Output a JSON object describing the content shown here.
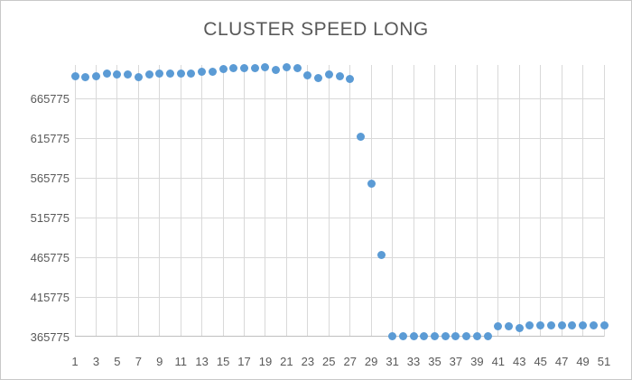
{
  "chart_data": {
    "type": "scatter",
    "title": "CLUSTER SPEED LONG",
    "xlabel": "",
    "ylabel": "",
    "legend": "none",
    "grid": true,
    "xlim": [
      1,
      51
    ],
    "ylim": [
      365775,
      708500
    ],
    "x_ticks": [
      1,
      3,
      5,
      7,
      9,
      11,
      13,
      15,
      17,
      19,
      21,
      23,
      25,
      27,
      29,
      31,
      33,
      35,
      37,
      39,
      41,
      43,
      45,
      47,
      49,
      51
    ],
    "y_ticks": [
      365775,
      415775,
      465775,
      515775,
      565775,
      615775,
      665775
    ],
    "x": [
      1,
      2,
      3,
      4,
      5,
      6,
      7,
      8,
      9,
      10,
      11,
      12,
      13,
      14,
      15,
      16,
      17,
      18,
      19,
      20,
      21,
      22,
      23,
      24,
      25,
      26,
      27,
      28,
      29,
      30,
      31,
      32,
      33,
      34,
      35,
      36,
      37,
      38,
      39,
      40,
      41,
      42,
      43,
      44,
      45,
      46,
      47,
      48,
      49,
      50,
      51
    ],
    "y": [
      694500,
      693000,
      694000,
      698000,
      696500,
      697000,
      693500,
      697000,
      697500,
      698000,
      697500,
      697500,
      700500,
      700000,
      703500,
      704500,
      704000,
      704500,
      705500,
      702500,
      705500,
      704500,
      695500,
      691500,
      697000,
      694000,
      690500,
      617500,
      558500,
      468500,
      366000,
      366000,
      365800,
      366000,
      366000,
      365800,
      365800,
      366000,
      366300,
      366300,
      378500,
      378500,
      377000,
      380500,
      380500,
      380500,
      380500,
      380000,
      380500,
      380500,
      380000
    ]
  },
  "colors": {
    "marker": "#5B9BD5",
    "gridline": "#D9D9D9",
    "axis_line": "#BFBFBF",
    "text": "#595959",
    "title_text": "#595959",
    "background": "#FFFFFF",
    "frame_border": "#C9C9C9"
  }
}
